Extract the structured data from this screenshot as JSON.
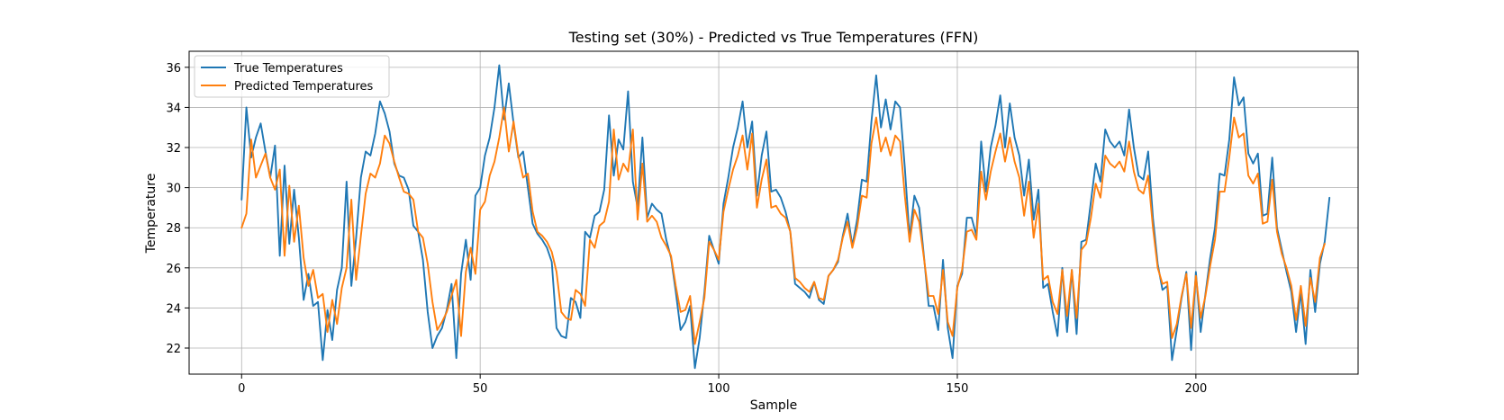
{
  "chart_data": {
    "type": "line",
    "title": "Testing set (30%) - Predicted vs True Temperatures (FFN)",
    "xlabel": "Sample",
    "ylabel": "Temperature",
    "xlim": [
      -11,
      234
    ],
    "ylim": [
      20.7,
      36.8
    ],
    "xticks": [
      0,
      50,
      100,
      150,
      200
    ],
    "yticks": [
      22,
      24,
      26,
      28,
      30,
      32,
      34,
      36
    ],
    "grid": true,
    "legend_position": "top-left",
    "series": [
      {
        "name": "True Temperatures",
        "color": "#1f77b4",
        "values": [
          29.4,
          34.0,
          31.5,
          32.5,
          33.2,
          31.8,
          30.5,
          32.1,
          26.6,
          31.1,
          27.2,
          29.9,
          27.5,
          24.4,
          25.7,
          24.1,
          24.3,
          21.4,
          23.9,
          22.4,
          24.9,
          26.0,
          30.3,
          25.1,
          27.5,
          30.5,
          31.8,
          31.6,
          32.7,
          34.3,
          33.7,
          32.8,
          31.2,
          30.6,
          30.5,
          29.9,
          28.1,
          27.8,
          26.4,
          23.8,
          22.0,
          22.6,
          23.0,
          23.9,
          25.2,
          21.5,
          25.7,
          27.4,
          25.4,
          29.6,
          30.0,
          31.6,
          32.5,
          34.0,
          36.1,
          33.4,
          35.2,
          33.2,
          31.5,
          31.8,
          30.0,
          28.2,
          27.7,
          27.4,
          27.0,
          26.3,
          23.0,
          22.6,
          22.5,
          24.5,
          24.3,
          23.5,
          27.8,
          27.5,
          28.6,
          28.8,
          29.9,
          33.6,
          30.6,
          32.4,
          31.9,
          34.8,
          30.3,
          29.0,
          32.5,
          28.5,
          29.2,
          28.9,
          28.7,
          27.4,
          26.5,
          24.8,
          22.9,
          23.3,
          24.1,
          21.0,
          22.5,
          24.8,
          27.6,
          26.9,
          26.2,
          29.2,
          30.5,
          32.0,
          33.0,
          34.3,
          32.0,
          33.3,
          29.6,
          31.6,
          32.8,
          29.8,
          29.9,
          29.5,
          28.8,
          27.8,
          25.2,
          25.0,
          24.8,
          24.5,
          25.3,
          24.4,
          24.2,
          25.6,
          25.9,
          26.3,
          27.6,
          28.7,
          27.1,
          28.4,
          30.4,
          30.3,
          33.3,
          35.6,
          33.0,
          34.4,
          32.9,
          34.3,
          34.0,
          31.0,
          27.5,
          29.6,
          29.0,
          26.6,
          24.1,
          24.1,
          22.9,
          26.4,
          23.0,
          21.5,
          25.1,
          25.7,
          28.5,
          28.5,
          27.6,
          32.3,
          29.8,
          32.0,
          33.1,
          34.6,
          32.0,
          34.2,
          32.5,
          31.6,
          29.6,
          31.4,
          28.4,
          29.9,
          25.0,
          25.2,
          23.8,
          22.6,
          26.0,
          22.8,
          25.9,
          22.7,
          27.3,
          27.4,
          29.3,
          31.2,
          30.3,
          32.9,
          32.3,
          32.0,
          32.3,
          31.6,
          33.9,
          32.0,
          30.6,
          30.4,
          31.8,
          28.5,
          26.2,
          24.9,
          25.1,
          21.4,
          22.9,
          24.5,
          25.8,
          21.9,
          25.8,
          22.8,
          24.7,
          26.5,
          28.0,
          30.7,
          30.6,
          32.4,
          35.5,
          34.1,
          34.5,
          31.7,
          31.2,
          31.7,
          28.6,
          28.7,
          31.5,
          28.0,
          26.9,
          25.8,
          24.8,
          22.8,
          24.8,
          22.2,
          25.9,
          23.8,
          26.2,
          27.3,
          29.5
        ]
      },
      {
        "name": "Predicted Temperatures",
        "color": "#ff7f0e",
        "values": [
          28.0,
          28.7,
          32.4,
          30.5,
          31.1,
          31.7,
          30.5,
          29.9,
          30.9,
          26.6,
          30.1,
          27.3,
          29.1,
          26.5,
          25.1,
          25.9,
          24.5,
          24.7,
          22.8,
          24.4,
          23.2,
          25.0,
          26.0,
          29.4,
          25.4,
          27.6,
          29.7,
          30.7,
          30.5,
          31.2,
          32.6,
          32.2,
          31.3,
          30.5,
          29.8,
          29.7,
          29.4,
          27.8,
          27.5,
          26.2,
          24.3,
          22.9,
          23.3,
          23.8,
          24.6,
          25.4,
          22.6,
          25.8,
          27.0,
          25.7,
          28.9,
          29.3,
          30.6,
          31.3,
          32.5,
          34.0,
          31.8,
          33.3,
          31.6,
          30.5,
          30.7,
          28.8,
          27.8,
          27.6,
          27.3,
          26.8,
          25.8,
          23.8,
          23.5,
          23.4,
          24.9,
          24.7,
          24.1,
          27.4,
          27.0,
          28.1,
          28.3,
          29.3,
          32.9,
          30.4,
          31.2,
          30.8,
          32.9,
          28.4,
          31.2,
          28.3,
          28.6,
          28.3,
          27.5,
          27.1,
          26.6,
          25.1,
          23.8,
          23.9,
          24.6,
          22.2,
          23.3,
          24.5,
          27.3,
          26.9,
          26.4,
          28.8,
          29.9,
          30.9,
          31.6,
          32.6,
          30.9,
          32.7,
          29.0,
          30.4,
          31.4,
          29.0,
          29.1,
          28.7,
          28.5,
          27.8,
          25.5,
          25.3,
          25.0,
          24.8,
          25.3,
          24.5,
          24.4,
          25.6,
          25.9,
          26.4,
          27.5,
          28.3,
          27.0,
          28.0,
          29.6,
          29.5,
          32.2,
          33.5,
          31.8,
          32.5,
          31.6,
          32.6,
          32.3,
          29.6,
          27.3,
          28.9,
          28.3,
          26.5,
          24.6,
          24.6,
          23.7,
          25.9,
          23.3,
          22.6,
          25.0,
          25.9,
          27.8,
          27.9,
          27.4,
          30.8,
          29.4,
          30.8,
          31.8,
          32.7,
          31.3,
          32.5,
          31.3,
          30.5,
          28.6,
          30.3,
          27.5,
          29.2,
          25.4,
          25.6,
          24.3,
          23.7,
          25.9,
          23.6,
          25.9,
          23.5,
          26.9,
          27.2,
          28.5,
          30.2,
          29.5,
          31.6,
          31.2,
          31.0,
          31.3,
          30.8,
          32.3,
          30.8,
          29.9,
          29.7,
          30.6,
          28.0,
          26.0,
          25.2,
          25.3,
          22.5,
          23.2,
          24.6,
          25.7,
          23.0,
          25.6,
          23.5,
          24.6,
          26.1,
          27.4,
          29.8,
          29.8,
          31.5,
          33.5,
          32.5,
          32.7,
          30.6,
          30.2,
          30.7,
          28.2,
          28.3,
          30.4,
          27.8,
          26.7,
          26.0,
          25.1,
          23.4,
          25.1,
          23.1,
          25.5,
          24.3,
          26.5,
          27.2
        ]
      }
    ]
  }
}
